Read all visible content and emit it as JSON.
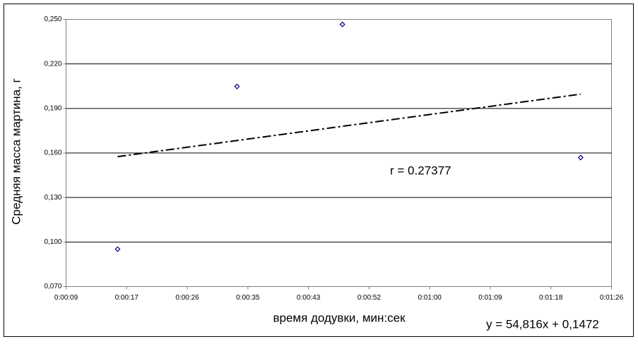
{
  "chart_data": {
    "type": "scatter",
    "y_label": "Средняя масса мартина, г",
    "x_label": "время додувки, мин:сек",
    "annotations": [
      "r = 0.27377",
      "y = 54,816x + 0,1472"
    ],
    "x": [
      0.000185,
      0.000382,
      0.000556,
      0.000949
    ],
    "values": [
      0.0952,
      0.2048,
      0.2466,
      0.1569
    ],
    "color": "#000080",
    "trendline": true,
    "grid": true,
    "xlim": [
      0.0001,
      0.001
    ],
    "xticks": [
      {
        "value": 0.0001,
        "label": "0:00:09"
      },
      {
        "value": 0.0002,
        "label": "0:00:17"
      },
      {
        "value": 0.0003,
        "label": "0:00:26"
      },
      {
        "value": 0.0004,
        "label": "0:00:35"
      },
      {
        "value": 0.0005,
        "label": "0:00:43"
      },
      {
        "value": 0.0006,
        "label": "0:00:52"
      },
      {
        "value": 0.0007,
        "label": "0:01:00"
      },
      {
        "value": 0.0008,
        "label": "0:01:09"
      },
      {
        "value": 0.0009,
        "label": "0:01:18"
      },
      {
        "value": 0.001,
        "label": "0:01:26"
      }
    ],
    "ylim": [
      0.07,
      0.25
    ],
    "yticks": [
      {
        "value": 0.07,
        "label": "0,070"
      },
      {
        "value": 0.1,
        "label": "0,100"
      },
      {
        "value": 0.13,
        "label": "0,130"
      },
      {
        "value": 0.16,
        "label": "0,160"
      },
      {
        "value": 0.19,
        "label": "0,190"
      },
      {
        "value": 0.22,
        "label": "0,220"
      },
      {
        "value": 0.25,
        "label": "0,250"
      }
    ]
  }
}
